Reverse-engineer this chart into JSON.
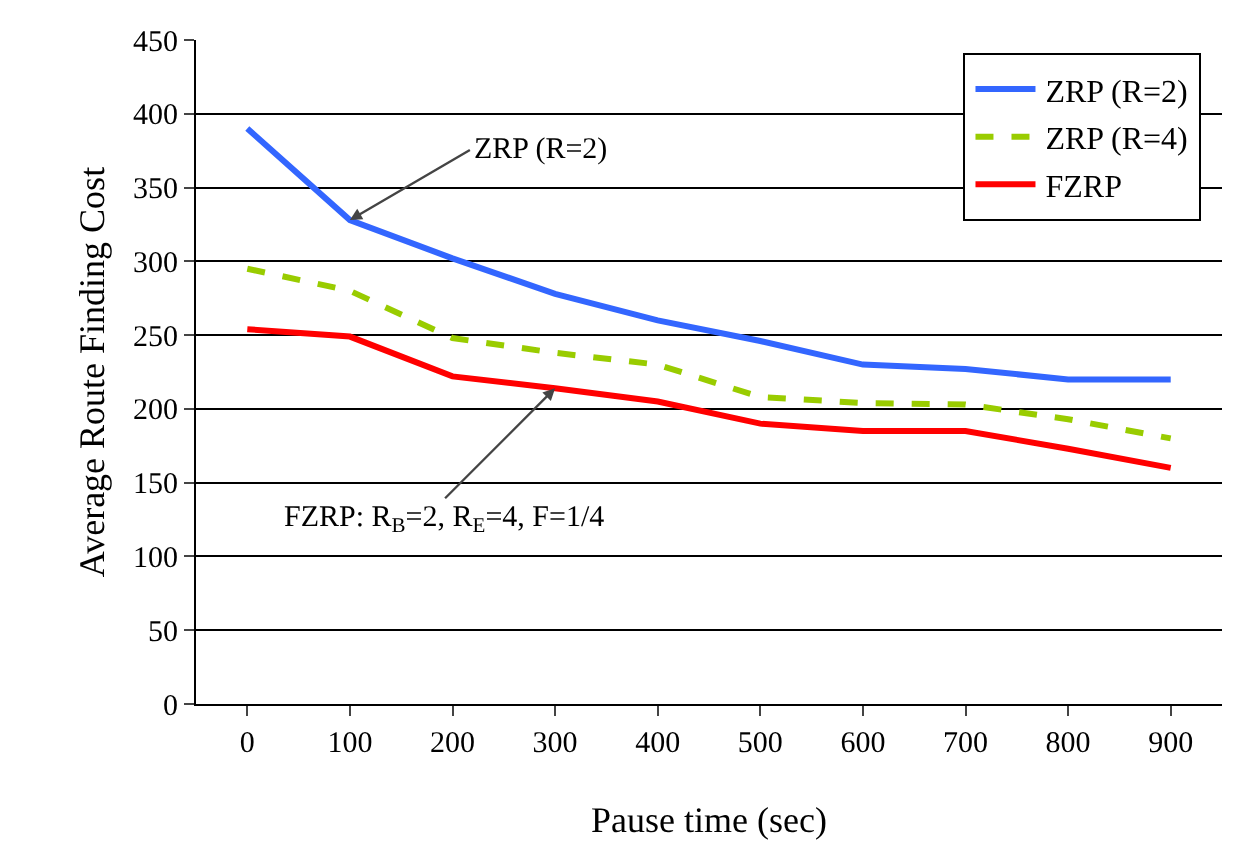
{
  "chart_data": {
    "type": "line",
    "xlabel": "Pause time (sec)",
    "ylabel": "Average Route Finding Cost",
    "categories": [
      "0",
      "100",
      "200",
      "300",
      "400",
      "500",
      "600",
      "700",
      "800",
      "900"
    ],
    "series": [
      {
        "name": "ZRP (R=2)",
        "color": "#3366ff",
        "line_style": "solid",
        "values": [
          390,
          328,
          302,
          278,
          260,
          246,
          230,
          227,
          220,
          220
        ]
      },
      {
        "name": "ZRP (R=4)",
        "color": "#99cc00",
        "line_style": "dashed",
        "values": [
          295,
          280,
          248,
          238,
          230,
          208,
          204,
          203,
          193,
          180
        ]
      },
      {
        "name": "FZRP",
        "color": "#ff0000",
        "line_style": "solid",
        "values": [
          254,
          249,
          222,
          214,
          205,
          190,
          185,
          185,
          173,
          160
        ]
      }
    ],
    "ylim": [
      0,
      450
    ],
    "yticks": [
      0,
      50,
      100,
      150,
      200,
      250,
      300,
      350,
      400,
      450
    ],
    "grid": "y",
    "legend": "top right",
    "marker": "none",
    "annotations": [
      {
        "text": "ZRP (R=2)",
        "x": "100",
        "y": 328
      },
      {
        "text": "FZRP: R$_{B}$=2, R$_{E}$=4, F=1/4",
        "x": "300",
        "y": 214
      }
    ]
  }
}
